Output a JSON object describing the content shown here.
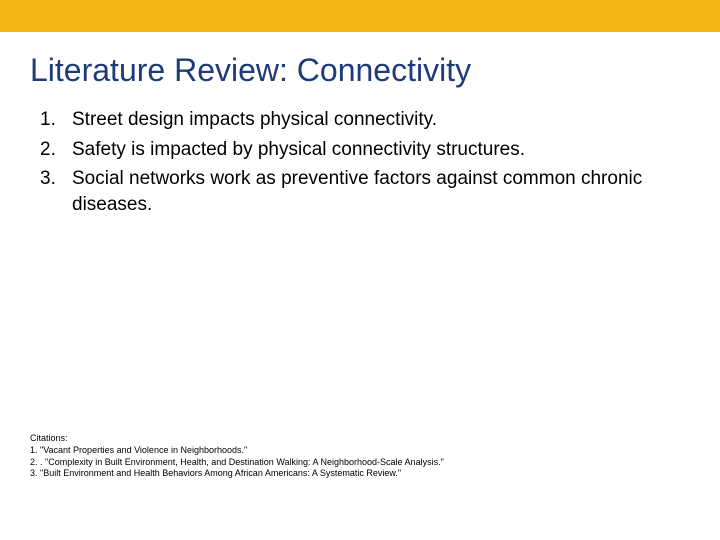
{
  "colors": {
    "topBar": "#f0b417",
    "title": "#1f3a7a",
    "bodyText": "#000000",
    "background": "#ffffff"
  },
  "typography": {
    "titleFontSize": 32,
    "bodyFontSize": 19,
    "citationFontSize": 9
  },
  "title": "Literature Review: Connectivity",
  "points": [
    "Street design impacts physical connectivity.",
    "Safety is impacted by physical connectivity structures.",
    "Social networks work as preventive factors against common chronic diseases."
  ],
  "citations": {
    "heading": "Citations:",
    "items": [
      "1. \"Vacant Properties and Violence in Neighborhoods.\"",
      "2. . \"Complexity in Built Environment, Health, and Destination Walking: A Neighborhood-Scale Analysis.\"",
      "3. \"Built Environment and Health Behaviors Among African Americans: A Systematic Review.\""
    ]
  }
}
